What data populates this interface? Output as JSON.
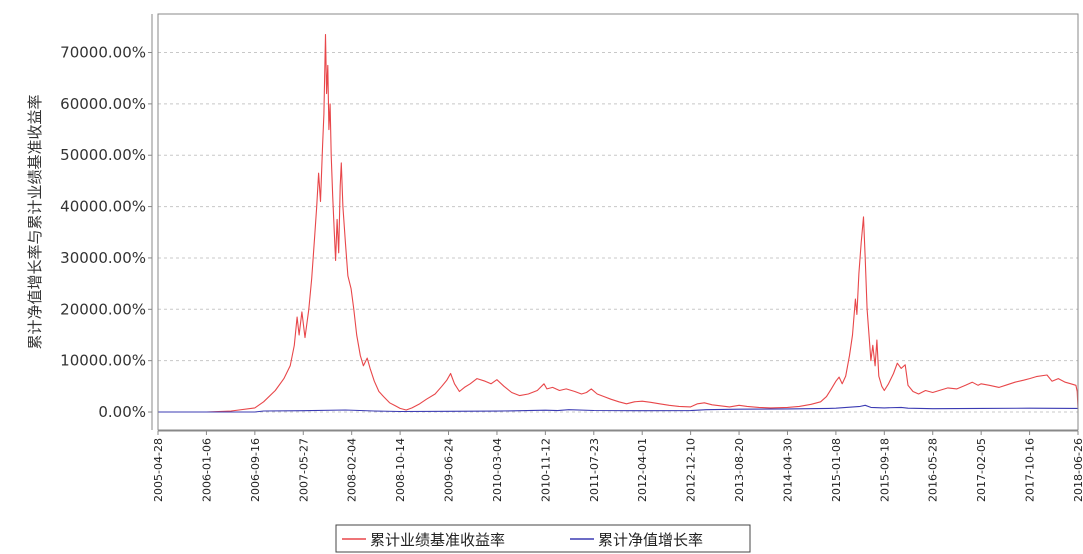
{
  "chart_data": {
    "type": "line",
    "ylabel": "累计净值增长率与累计业绩基准收益率",
    "ytick_labels": [
      "0.00%",
      "10000.00%",
      "20000.00%",
      "30000.00%",
      "40000.00%",
      "50000.00%",
      "60000.00%",
      "70000.00%"
    ],
    "yticks": [
      0,
      10000,
      20000,
      30000,
      40000,
      50000,
      60000,
      70000
    ],
    "ylim": [
      -3500,
      77500
    ],
    "xlim": [
      "2005-04-28",
      "2018-06-26"
    ],
    "xticks": [
      "2005-04-28",
      "2006-01-06",
      "2006-09-16",
      "2007-05-27",
      "2008-02-04",
      "2008-10-14",
      "2009-06-24",
      "2010-03-04",
      "2010-11-12",
      "2011-07-23",
      "2012-04-01",
      "2012-12-10",
      "2013-08-20",
      "2014-04-30",
      "2015-01-08",
      "2015-09-18",
      "2016-05-28",
      "2017-02-05",
      "2017-10-16",
      "2018-06-26"
    ],
    "grid": "horizontal-dashed",
    "legend_position": "bottom",
    "series": [
      {
        "name": "累计业绩基准收益率",
        "color": "#e8474a",
        "points": [
          [
            "2005-04-28",
            0
          ],
          [
            "2006-01-06",
            0
          ],
          [
            "2006-05-15",
            200
          ],
          [
            "2006-09-16",
            800
          ],
          [
            "2006-11-01",
            2000
          ],
          [
            "2007-01-01",
            4200
          ],
          [
            "2007-02-15",
            6500
          ],
          [
            "2007-03-20",
            9000
          ],
          [
            "2007-04-10",
            13000
          ],
          [
            "2007-04-25",
            18500
          ],
          [
            "2007-05-05",
            15000
          ],
          [
            "2007-05-20",
            19500
          ],
          [
            "2007-06-05",
            14500
          ],
          [
            "2007-06-25",
            20000
          ],
          [
            "2007-07-10",
            26000
          ],
          [
            "2007-07-25",
            34000
          ],
          [
            "2007-08-05",
            40000
          ],
          [
            "2007-08-15",
            46500
          ],
          [
            "2007-08-25",
            41000
          ],
          [
            "2007-09-05",
            52000
          ],
          [
            "2007-09-12",
            58000
          ],
          [
            "2007-09-20",
            73500
          ],
          [
            "2007-09-26",
            62000
          ],
          [
            "2007-10-02",
            67500
          ],
          [
            "2007-10-08",
            55000
          ],
          [
            "2007-10-14",
            60000
          ],
          [
            "2007-10-20",
            50000
          ],
          [
            "2007-10-28",
            42000
          ],
          [
            "2007-11-05",
            35000
          ],
          [
            "2007-11-12",
            29500
          ],
          [
            "2007-11-20",
            37500
          ],
          [
            "2007-11-28",
            31000
          ],
          [
            "2007-12-06",
            44000
          ],
          [
            "2007-12-12",
            48500
          ],
          [
            "2007-12-20",
            40000
          ],
          [
            "2008-01-02",
            33000
          ],
          [
            "2008-01-15",
            26500
          ],
          [
            "2008-02-01",
            24000
          ],
          [
            "2008-02-15",
            20000
          ],
          [
            "2008-03-01",
            15000
          ],
          [
            "2008-03-20",
            11000
          ],
          [
            "2008-04-05",
            9000
          ],
          [
            "2008-04-25",
            10500
          ],
          [
            "2008-05-10",
            8500
          ],
          [
            "2008-06-01",
            6000
          ],
          [
            "2008-06-25",
            4000
          ],
          [
            "2008-07-20",
            3000
          ],
          [
            "2008-08-20",
            1800
          ],
          [
            "2008-09-20",
            1200
          ],
          [
            "2008-10-14",
            700
          ],
          [
            "2008-11-15",
            400
          ],
          [
            "2008-12-15",
            800
          ],
          [
            "2009-01-20",
            1500
          ],
          [
            "2009-03-01",
            2500
          ],
          [
            "2009-04-15",
            3500
          ],
          [
            "2009-05-20",
            5000
          ],
          [
            "2009-06-15",
            6200
          ],
          [
            "2009-07-05",
            7500
          ],
          [
            "2009-07-25",
            5500
          ],
          [
            "2009-08-20",
            4000
          ],
          [
            "2009-09-15",
            4800
          ],
          [
            "2009-10-15",
            5500
          ],
          [
            "2009-11-20",
            6500
          ],
          [
            "2010-01-01",
            6000
          ],
          [
            "2010-02-01",
            5500
          ],
          [
            "2010-03-04",
            6300
          ],
          [
            "2010-04-10",
            5000
          ],
          [
            "2010-05-20",
            3800
          ],
          [
            "2010-07-01",
            3200
          ],
          [
            "2010-08-15",
            3500
          ],
          [
            "2010-10-01",
            4200
          ],
          [
            "2010-11-05",
            5500
          ],
          [
            "2010-11-20",
            4500
          ],
          [
            "2010-12-20",
            4800
          ],
          [
            "2011-01-25",
            4200
          ],
          [
            "2011-03-01",
            4500
          ],
          [
            "2011-04-15",
            4000
          ],
          [
            "2011-05-20",
            3500
          ],
          [
            "2011-06-15",
            3800
          ],
          [
            "2011-07-10",
            4500
          ],
          [
            "2011-08-10",
            3500
          ],
          [
            "2011-09-15",
            3000
          ],
          [
            "2011-10-20",
            2500
          ],
          [
            "2011-12-01",
            2000
          ],
          [
            "2012-01-10",
            1600
          ],
          [
            "2012-02-20",
            2000
          ],
          [
            "2012-04-01",
            2100
          ],
          [
            "2012-05-15",
            1900
          ],
          [
            "2012-07-01",
            1600
          ],
          [
            "2012-08-20",
            1300
          ],
          [
            "2012-10-10",
            1100
          ],
          [
            "2012-12-10",
            1000
          ],
          [
            "2013-01-15",
            1600
          ],
          [
            "2013-02-20",
            1800
          ],
          [
            "2013-04-01",
            1400
          ],
          [
            "2013-05-20",
            1200
          ],
          [
            "2013-07-01",
            1000
          ],
          [
            "2013-08-20",
            1300
          ],
          [
            "2013-10-01",
            1100
          ],
          [
            "2013-12-01",
            900
          ],
          [
            "2014-02-01",
            800
          ],
          [
            "2014-04-30",
            900
          ],
          [
            "2014-07-01",
            1100
          ],
          [
            "2014-09-01",
            1500
          ],
          [
            "2014-10-20",
            2000
          ],
          [
            "2014-11-20",
            3000
          ],
          [
            "2014-12-15",
            4500
          ],
          [
            "2015-01-08",
            6000
          ],
          [
            "2015-01-25",
            6800
          ],
          [
            "2015-02-10",
            5500
          ],
          [
            "2015-02-28",
            7000
          ],
          [
            "2015-03-20",
            11000
          ],
          [
            "2015-04-05",
            15000
          ],
          [
            "2015-04-20",
            22000
          ],
          [
            "2015-04-28",
            19000
          ],
          [
            "2015-05-08",
            27000
          ],
          [
            "2015-05-20",
            33000
          ],
          [
            "2015-06-01",
            38000
          ],
          [
            "2015-06-10",
            30000
          ],
          [
            "2015-06-20",
            20000
          ],
          [
            "2015-07-01",
            14500
          ],
          [
            "2015-07-10",
            10000
          ],
          [
            "2015-07-20",
            13000
          ],
          [
            "2015-08-01",
            9000
          ],
          [
            "2015-08-10",
            14000
          ],
          [
            "2015-08-20",
            7000
          ],
          [
            "2015-09-05",
            5000
          ],
          [
            "2015-09-18",
            4200
          ],
          [
            "2015-10-10",
            5500
          ],
          [
            "2015-11-05",
            7500
          ],
          [
            "2015-11-25",
            9500
          ],
          [
            "2015-12-15",
            8500
          ],
          [
            "2016-01-05",
            9200
          ],
          [
            "2016-01-20",
            5200
          ],
          [
            "2016-02-15",
            4000
          ],
          [
            "2016-03-15",
            3500
          ],
          [
            "2016-04-20",
            4200
          ],
          [
            "2016-05-28",
            3800
          ],
          [
            "2016-07-01",
            4200
          ],
          [
            "2016-08-15",
            4700
          ],
          [
            "2016-10-01",
            4500
          ],
          [
            "2016-11-15",
            5200
          ],
          [
            "2016-12-20",
            5800
          ],
          [
            "2017-01-20",
            5200
          ],
          [
            "2017-02-05",
            5500
          ],
          [
            "2017-03-20",
            5200
          ],
          [
            "2017-05-10",
            4800
          ],
          [
            "2017-06-20",
            5300
          ],
          [
            "2017-08-01",
            5800
          ],
          [
            "2017-09-15",
            6200
          ],
          [
            "2017-10-16",
            6500
          ],
          [
            "2017-11-20",
            6900
          ],
          [
            "2018-01-15",
            7200
          ],
          [
            "2018-02-10",
            6000
          ],
          [
            "2018-03-15",
            6500
          ],
          [
            "2018-04-20",
            5800
          ],
          [
            "2018-05-20",
            5500
          ],
          [
            "2018-06-15",
            5200
          ],
          [
            "2018-06-22",
            4000
          ],
          [
            "2018-06-26",
            600
          ]
        ]
      },
      {
        "name": "累计净值增长率",
        "color": "#3b3bb3",
        "points": [
          [
            "2005-04-28",
            0
          ],
          [
            "2006-01-06",
            0
          ],
          [
            "2006-05-15",
            0
          ],
          [
            "2006-09-16",
            0
          ],
          [
            "2006-11-01",
            200
          ],
          [
            "2007-05-27",
            250
          ],
          [
            "2008-01-01",
            400
          ],
          [
            "2008-06-01",
            200
          ],
          [
            "2008-10-14",
            100
          ],
          [
            "2009-06-24",
            150
          ],
          [
            "2010-03-04",
            180
          ],
          [
            "2010-11-12",
            350
          ],
          [
            "2011-01-15",
            280
          ],
          [
            "2011-03-15",
            450
          ],
          [
            "2011-07-23",
            300
          ],
          [
            "2012-04-01",
            250
          ],
          [
            "2012-12-10",
            280
          ],
          [
            "2013-03-01",
            450
          ],
          [
            "2013-08-20",
            550
          ],
          [
            "2014-04-30",
            600
          ],
          [
            "2014-12-01",
            700
          ],
          [
            "2015-01-08",
            750
          ],
          [
            "2015-05-15",
            1100
          ],
          [
            "2015-06-10",
            1300
          ],
          [
            "2015-07-10",
            900
          ],
          [
            "2015-09-18",
            800
          ],
          [
            "2015-12-15",
            900
          ],
          [
            "2016-01-20",
            750
          ],
          [
            "2016-05-28",
            650
          ],
          [
            "2017-02-05",
            700
          ],
          [
            "2017-10-16",
            750
          ],
          [
            "2018-06-26",
            700
          ]
        ]
      }
    ]
  }
}
